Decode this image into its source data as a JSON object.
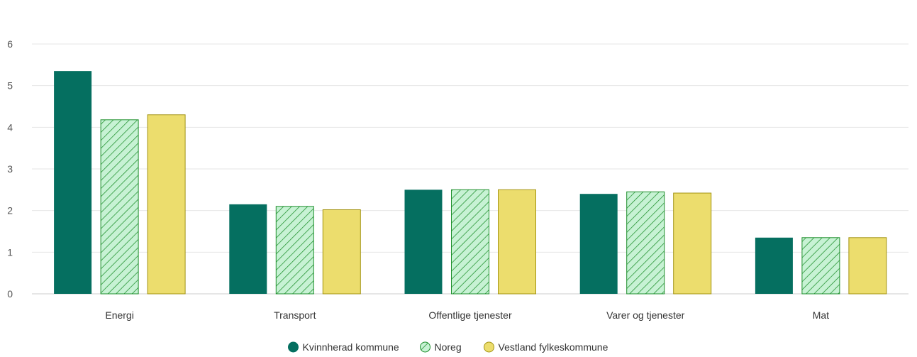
{
  "chart_data": {
    "type": "bar",
    "title": "",
    "xlabel": "",
    "ylabel": "",
    "categories": [
      "Energi",
      "Transport",
      "Offentlige tjenester",
      "Varer og tjenester",
      "Mat"
    ],
    "ylim": [
      0,
      6
    ],
    "yticks": [
      0,
      1,
      2,
      3,
      4,
      5,
      6
    ],
    "grid": true,
    "legend_position": "bottom",
    "series": [
      {
        "name": "Kvinnherad kommune",
        "values": [
          5.35,
          2.15,
          2.5,
          2.4,
          1.35
        ],
        "color": "#056f60",
        "pattern": "solid"
      },
      {
        "name": "Noreg",
        "values": [
          4.18,
          2.1,
          2.5,
          2.45,
          1.35
        ],
        "color": "#c7f2d4",
        "stroke": "#1d8f2b",
        "pattern": "hatch"
      },
      {
        "name": "Vestland fylkeskommune",
        "values": [
          4.3,
          2.02,
          2.5,
          2.42,
          1.35
        ],
        "color": "#ecdd6d",
        "stroke": "#a39413",
        "pattern": "solid"
      }
    ]
  }
}
